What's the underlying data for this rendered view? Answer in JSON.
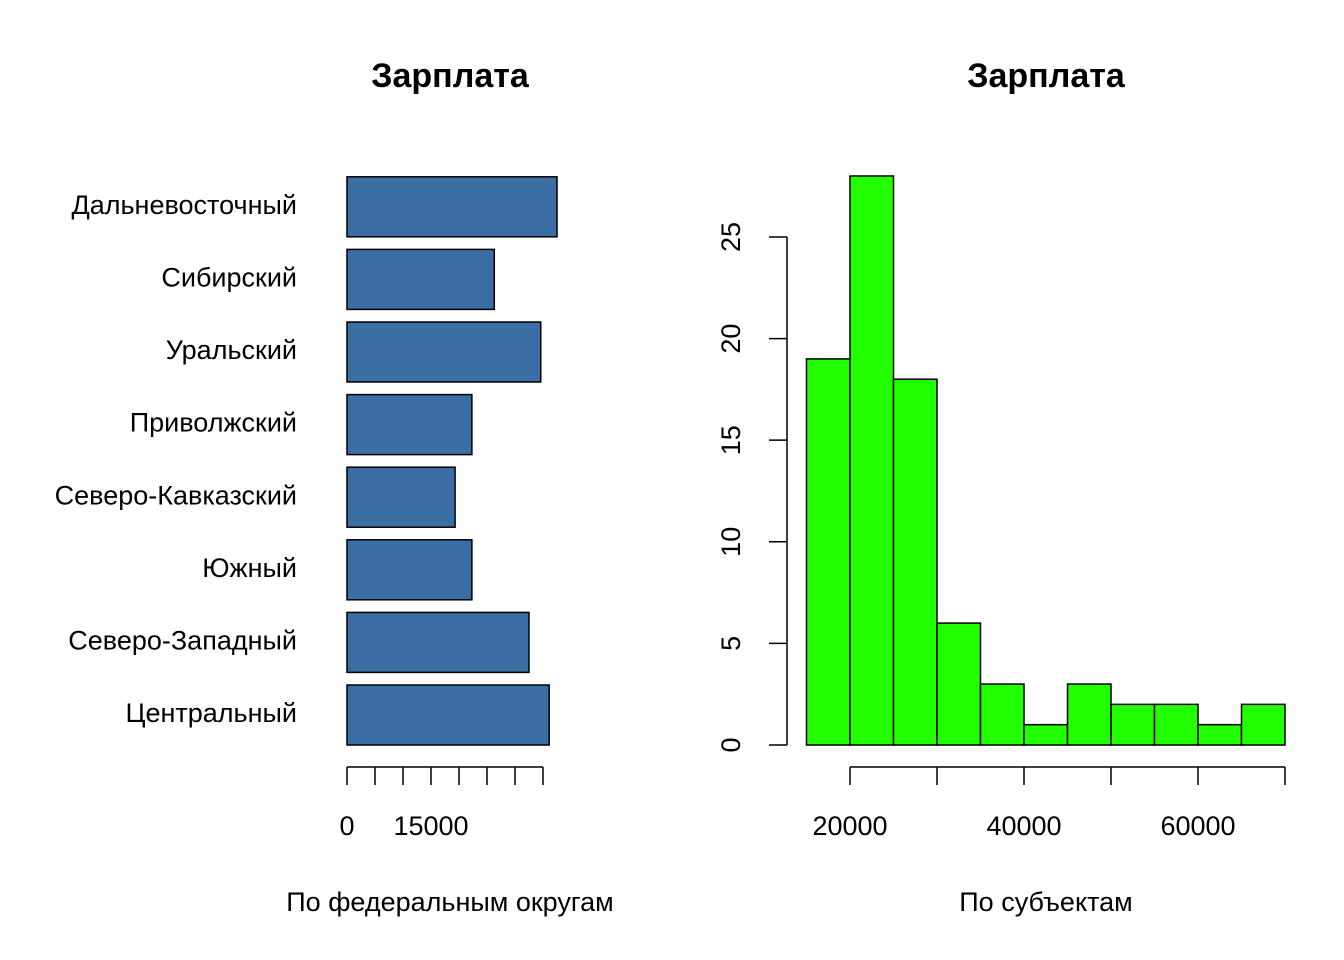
{
  "chart_data": [
    {
      "type": "hbar",
      "title": "Зарплата",
      "xlabel": "По федеральным округам",
      "categories": [
        "Центральный",
        "Северо-Западный",
        "Южный",
        "Северо-Кавказский",
        "Приволжский",
        "Уральский",
        "Сибирский",
        "Дальневосточный"
      ],
      "values": [
        36100,
        32500,
        22300,
        19300,
        22300,
        34600,
        26300,
        37500
      ],
      "color": "#3a6ea5",
      "xlim": [
        0,
        40000
      ],
      "xticks": [
        0,
        {
          "value": 5000,
          "label": null
        },
        {
          "value": 10000,
          "label": null
        },
        15000,
        {
          "value": 20000,
          "label": null
        },
        {
          "value": 25000,
          "label": null
        },
        {
          "value": 30000,
          "label": null
        },
        {
          "value": 35000,
          "label": null
        }
      ]
    },
    {
      "type": "histogram",
      "title": "Зарплата",
      "xlabel": "По субъектам",
      "bins": [
        15000,
        20000,
        25000,
        30000,
        35000,
        40000,
        45000,
        50000,
        55000,
        60000,
        65000,
        70000
      ],
      "values": [
        19,
        28,
        18,
        6,
        3,
        1,
        3,
        2,
        2,
        1,
        2
      ],
      "color": "#22ff00",
      "xlim": [
        15000,
        70000
      ],
      "ylim": [
        0,
        28
      ],
      "xticks": [
        20000,
        {
          "value": 30000,
          "label": null
        },
        40000,
        {
          "value": 50000,
          "label": null
        },
        60000,
        {
          "value": 70000,
          "label": null
        }
      ],
      "yticks": [
        0,
        5,
        10,
        15,
        20,
        25
      ]
    }
  ]
}
